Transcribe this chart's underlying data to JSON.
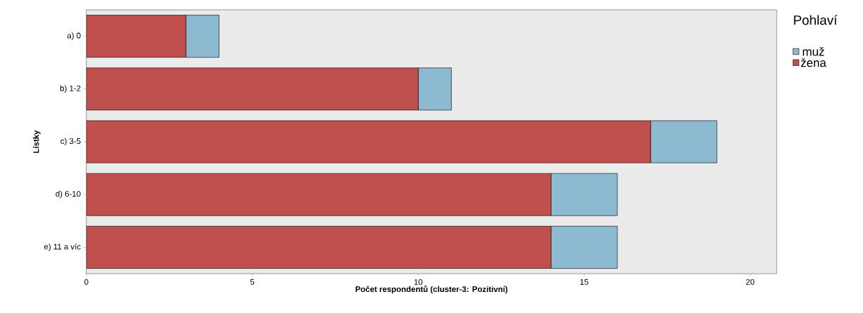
{
  "chart_data": {
    "type": "bar",
    "orientation": "horizontal",
    "stacked": true,
    "xlabel": "Počet respondentů (cluster-3: Pozitivní)",
    "ylabel": "Lístky",
    "legend_title": "Pohlaví",
    "legend": "right",
    "categories": [
      "a) 0",
      "b) 1-2",
      "c) 3-5",
      "d) 6-10",
      "e) 11 a víc"
    ],
    "series": [
      {
        "name": "žena",
        "color": "#c0504d",
        "values": [
          3,
          10,
          17,
          14,
          14
        ]
      },
      {
        "name": "muž",
        "color": "#8db9d1",
        "values": [
          1,
          1,
          2,
          2,
          2
        ]
      }
    ],
    "xlim": [
      0,
      20.8
    ],
    "xticks": [
      0,
      5,
      10,
      15,
      20
    ]
  }
}
